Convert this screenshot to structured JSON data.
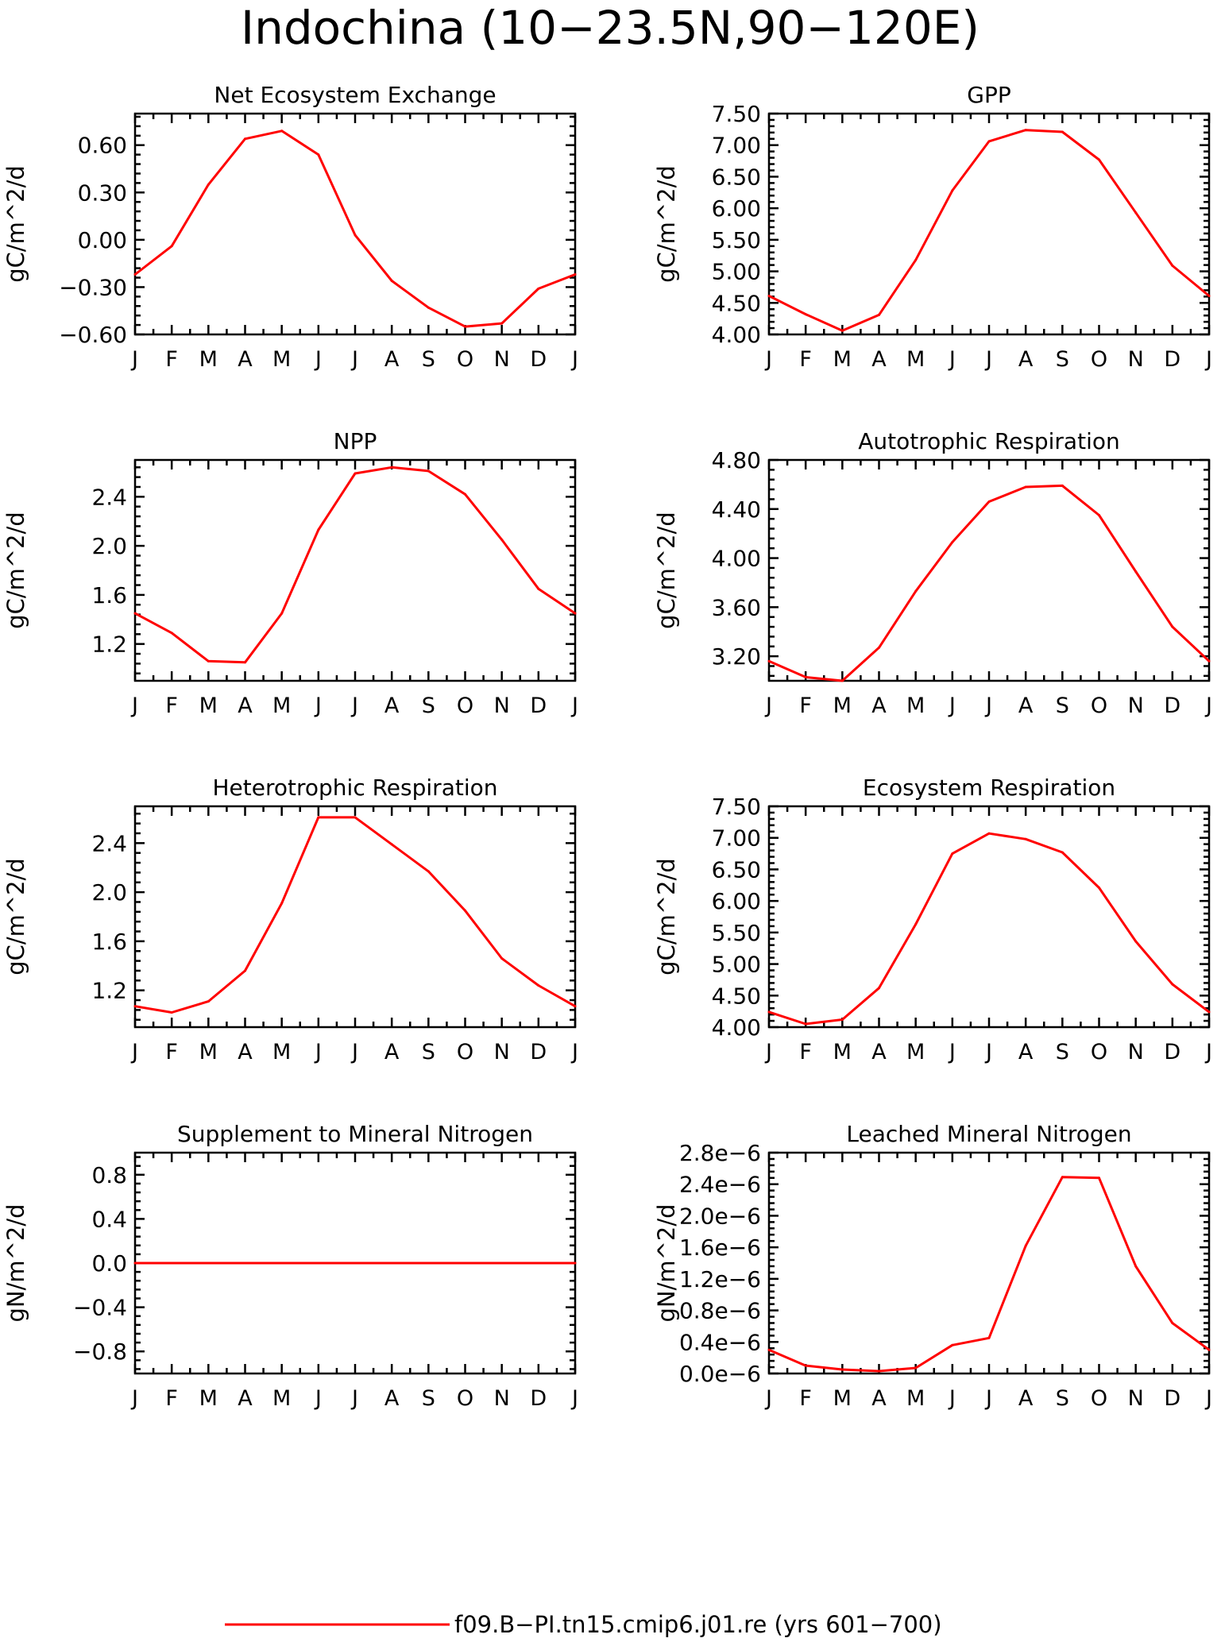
{
  "figure": {
    "title": "Indochina (10−23.5N,90−120E)"
  },
  "colors": {
    "series": "#ff0000",
    "axes": "#000000"
  },
  "legend": {
    "label": "f09.B−PI.tn15.cmip6.j01.re (yrs 601−700)"
  },
  "chart_data": [
    {
      "type": "line",
      "title": "Net Ecosystem Exchange",
      "ylabel": "gC/m^2/d",
      "categories": [
        "J",
        "F",
        "M",
        "A",
        "M",
        "J",
        "J",
        "A",
        "S",
        "O",
        "N",
        "D",
        "J"
      ],
      "yticks": [
        "0.60",
        "0.30",
        "0.00",
        "−0.30",
        "−0.60"
      ],
      "ylim": [
        -0.6,
        0.8
      ],
      "values": [
        -0.22,
        -0.04,
        0.35,
        0.64,
        0.69,
        0.54,
        0.03,
        -0.26,
        -0.43,
        -0.55,
        -0.53,
        -0.31,
        -0.22
      ]
    },
    {
      "type": "line",
      "title": "GPP",
      "ylabel": "gC/m^2/d",
      "categories": [
        "J",
        "F",
        "M",
        "A",
        "M",
        "J",
        "J",
        "A",
        "S",
        "O",
        "N",
        "D",
        "J"
      ],
      "yticks": [
        "7.50",
        "7.00",
        "6.50",
        "6.00",
        "5.50",
        "5.00",
        "4.50",
        "4.00"
      ],
      "ylim": [
        4.0,
        7.5
      ],
      "values": [
        4.61,
        4.32,
        4.06,
        4.31,
        5.18,
        6.28,
        7.06,
        7.24,
        7.21,
        6.77,
        5.93,
        5.09,
        4.61
      ]
    },
    {
      "type": "line",
      "title": "NPP",
      "ylabel": "gC/m^2/d",
      "categories": [
        "J",
        "F",
        "M",
        "A",
        "M",
        "J",
        "J",
        "A",
        "S",
        "O",
        "N",
        "D",
        "J"
      ],
      "yticks": [
        "2.4",
        "2.0",
        "1.6",
        "1.2"
      ],
      "ylim": [
        0.9,
        2.7
      ],
      "values": [
        1.45,
        1.29,
        1.06,
        1.05,
        1.45,
        2.13,
        2.59,
        2.64,
        2.61,
        2.42,
        2.05,
        1.65,
        1.45
      ]
    },
    {
      "type": "line",
      "title": "Autotrophic Respiration",
      "ylabel": "gC/m^2/d",
      "categories": [
        "J",
        "F",
        "M",
        "A",
        "M",
        "J",
        "J",
        "A",
        "S",
        "O",
        "N",
        "D",
        "J"
      ],
      "yticks": [
        "4.80",
        "4.40",
        "4.00",
        "3.60",
        "3.20"
      ],
      "ylim": [
        3.0,
        4.8
      ],
      "values": [
        3.16,
        3.03,
        3.0,
        3.27,
        3.73,
        4.13,
        4.46,
        4.58,
        4.59,
        4.35,
        3.89,
        3.44,
        3.16
      ]
    },
    {
      "type": "line",
      "title": "Heterotrophic Respiration",
      "ylabel": "gC/m^2/d",
      "categories": [
        "J",
        "F",
        "M",
        "A",
        "M",
        "J",
        "J",
        "A",
        "S",
        "O",
        "N",
        "D",
        "J"
      ],
      "yticks": [
        "2.4",
        "2.0",
        "1.6",
        "1.2"
      ],
      "ylim": [
        0.9,
        2.7
      ],
      "values": [
        1.07,
        1.02,
        1.11,
        1.36,
        1.91,
        2.61,
        2.61,
        2.39,
        2.17,
        1.85,
        1.46,
        1.24,
        1.07
      ]
    },
    {
      "type": "line",
      "title": "Ecosystem Respiration",
      "ylabel": "gC/m^2/d",
      "categories": [
        "J",
        "F",
        "M",
        "A",
        "M",
        "J",
        "J",
        "A",
        "S",
        "O",
        "N",
        "D",
        "J"
      ],
      "yticks": [
        "7.50",
        "7.00",
        "6.50",
        "6.00",
        "5.50",
        "5.00",
        "4.50",
        "4.00"
      ],
      "ylim": [
        4.0,
        7.5
      ],
      "values": [
        4.24,
        4.05,
        4.12,
        4.62,
        5.63,
        6.75,
        7.07,
        6.98,
        6.77,
        6.21,
        5.36,
        4.68,
        4.24
      ]
    },
    {
      "type": "line",
      "title": "Supplement to Mineral Nitrogen",
      "ylabel": "gN/m^2/d",
      "categories": [
        "J",
        "F",
        "M",
        "A",
        "M",
        "J",
        "J",
        "A",
        "S",
        "O",
        "N",
        "D",
        "J"
      ],
      "yticks": [
        "0.8",
        "0.4",
        "0.0",
        "−0.4",
        "−0.8"
      ],
      "ylim": [
        -1.0,
        1.0
      ],
      "values": [
        0,
        0,
        0,
        0,
        0,
        0,
        0,
        0,
        0,
        0,
        0,
        0,
        0
      ]
    },
    {
      "type": "line",
      "title": "Leached Mineral Nitrogen",
      "ylabel": "gN/m^2/d",
      "categories": [
        "J",
        "F",
        "M",
        "A",
        "M",
        "J",
        "J",
        "A",
        "S",
        "O",
        "N",
        "D",
        "J"
      ],
      "yticks": [
        "2.8e−6",
        "2.4e−6",
        "2.0e−6",
        "1.6e−6",
        "1.2e−6",
        "0.8e−6",
        "0.4e−6",
        "0.0e−6"
      ],
      "ylim": [
        0.0,
        2.8e-06
      ],
      "values": [
        3e-07,
        1e-07,
        5e-08,
        3e-08,
        7e-08,
        3.6e-07,
        4.5e-07,
        1.62e-06,
        2.49e-06,
        2.48e-06,
        1.36e-06,
        6.4e-07,
        3e-07
      ]
    }
  ]
}
